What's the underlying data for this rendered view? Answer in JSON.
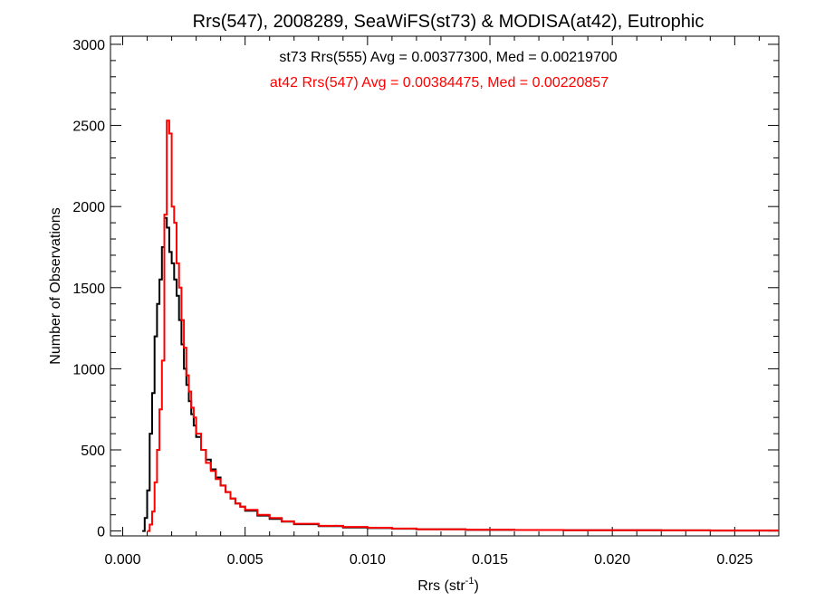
{
  "chart_data": {
    "type": "line",
    "title": "Rrs(547), 2008289, SeaWiFS(st73) & MODISA(at42), Eutrophic",
    "xlabel": "Rrs (str",
    "xlabel_sup": "-1",
    "xlabel_close": ")",
    "ylabel": "Number of Observations",
    "xlim": [
      -0.0005,
      0.0268
    ],
    "ylim": [
      -30,
      3050
    ],
    "xticks": [
      {
        "value": 0.0,
        "label": "0.000"
      },
      {
        "value": 0.005,
        "label": "0.005"
      },
      {
        "value": 0.01,
        "label": "0.010"
      },
      {
        "value": 0.015,
        "label": "0.015"
      },
      {
        "value": 0.02,
        "label": "0.020"
      },
      {
        "value": 0.025,
        "label": "0.025"
      }
    ],
    "yticks": [
      {
        "value": 0,
        "label": "0"
      },
      {
        "value": 500,
        "label": "500"
      },
      {
        "value": 1000,
        "label": "1000"
      },
      {
        "value": 1500,
        "label": "1500"
      },
      {
        "value": 2000,
        "label": "2000"
      },
      {
        "value": 2500,
        "label": "2500"
      },
      {
        "value": 3000,
        "label": "3000"
      }
    ],
    "grid": false,
    "legend_position": "top-center",
    "series": [
      {
        "legend": "st73 Rrs(555) Avg = 0.00377300, Med = 0.00219700",
        "color": "#000000",
        "step": "histogram",
        "x": [
          0.0008,
          0.0009,
          0.001,
          0.0011,
          0.0012,
          0.0013,
          0.0014,
          0.0015,
          0.0016,
          0.0017,
          0.0018,
          0.0019,
          0.002,
          0.0021,
          0.0022,
          0.0023,
          0.0024,
          0.0025,
          0.0026,
          0.0027,
          0.0028,
          0.0029,
          0.003,
          0.0032,
          0.0034,
          0.0036,
          0.0038,
          0.004,
          0.0042,
          0.0044,
          0.0046,
          0.0048,
          0.005,
          0.0055,
          0.006,
          0.0065,
          0.007,
          0.008,
          0.009,
          0.01,
          0.011,
          0.012,
          0.014,
          0.016,
          0.018,
          0.02,
          0.022,
          0.024,
          0.026,
          0.0268
        ],
        "y": [
          0,
          80,
          250,
          600,
          850,
          1200,
          1400,
          1550,
          1750,
          1930,
          1870,
          1720,
          1650,
          1550,
          1450,
          1300,
          1150,
          1000,
          900,
          800,
          720,
          650,
          580,
          500,
          440,
          380,
          330,
          280,
          240,
          200,
          170,
          150,
          125,
          95,
          75,
          58,
          42,
          30,
          22,
          18,
          14,
          10,
          7,
          6,
          5,
          5,
          4,
          3,
          3,
          3
        ]
      },
      {
        "legend": "at42 Rrs(547) Avg = 0.00384475, Med = 0.00220857",
        "color": "#ff0000",
        "step": "histogram",
        "x": [
          0.001,
          0.0011,
          0.0012,
          0.0013,
          0.0014,
          0.0015,
          0.0016,
          0.0017,
          0.0018,
          0.0019,
          0.002,
          0.0021,
          0.0022,
          0.0023,
          0.0024,
          0.0025,
          0.0026,
          0.0027,
          0.0028,
          0.0029,
          0.003,
          0.0032,
          0.0034,
          0.0036,
          0.0038,
          0.004,
          0.0042,
          0.0044,
          0.0046,
          0.0048,
          0.005,
          0.0055,
          0.006,
          0.0065,
          0.007,
          0.008,
          0.009,
          0.01,
          0.011,
          0.012,
          0.014,
          0.016,
          0.018,
          0.02,
          0.022,
          0.024,
          0.026,
          0.0268
        ],
        "y": [
          0,
          40,
          120,
          300,
          500,
          750,
          1050,
          1950,
          2530,
          2450,
          2000,
          1900,
          1650,
          1500,
          1300,
          1130,
          960,
          860,
          760,
          700,
          600,
          500,
          420,
          370,
          320,
          280,
          240,
          200,
          170,
          150,
          130,
          100,
          80,
          60,
          45,
          32,
          25,
          20,
          15,
          11,
          8,
          6,
          5,
          5,
          4,
          3,
          3,
          3
        ]
      }
    ]
  }
}
